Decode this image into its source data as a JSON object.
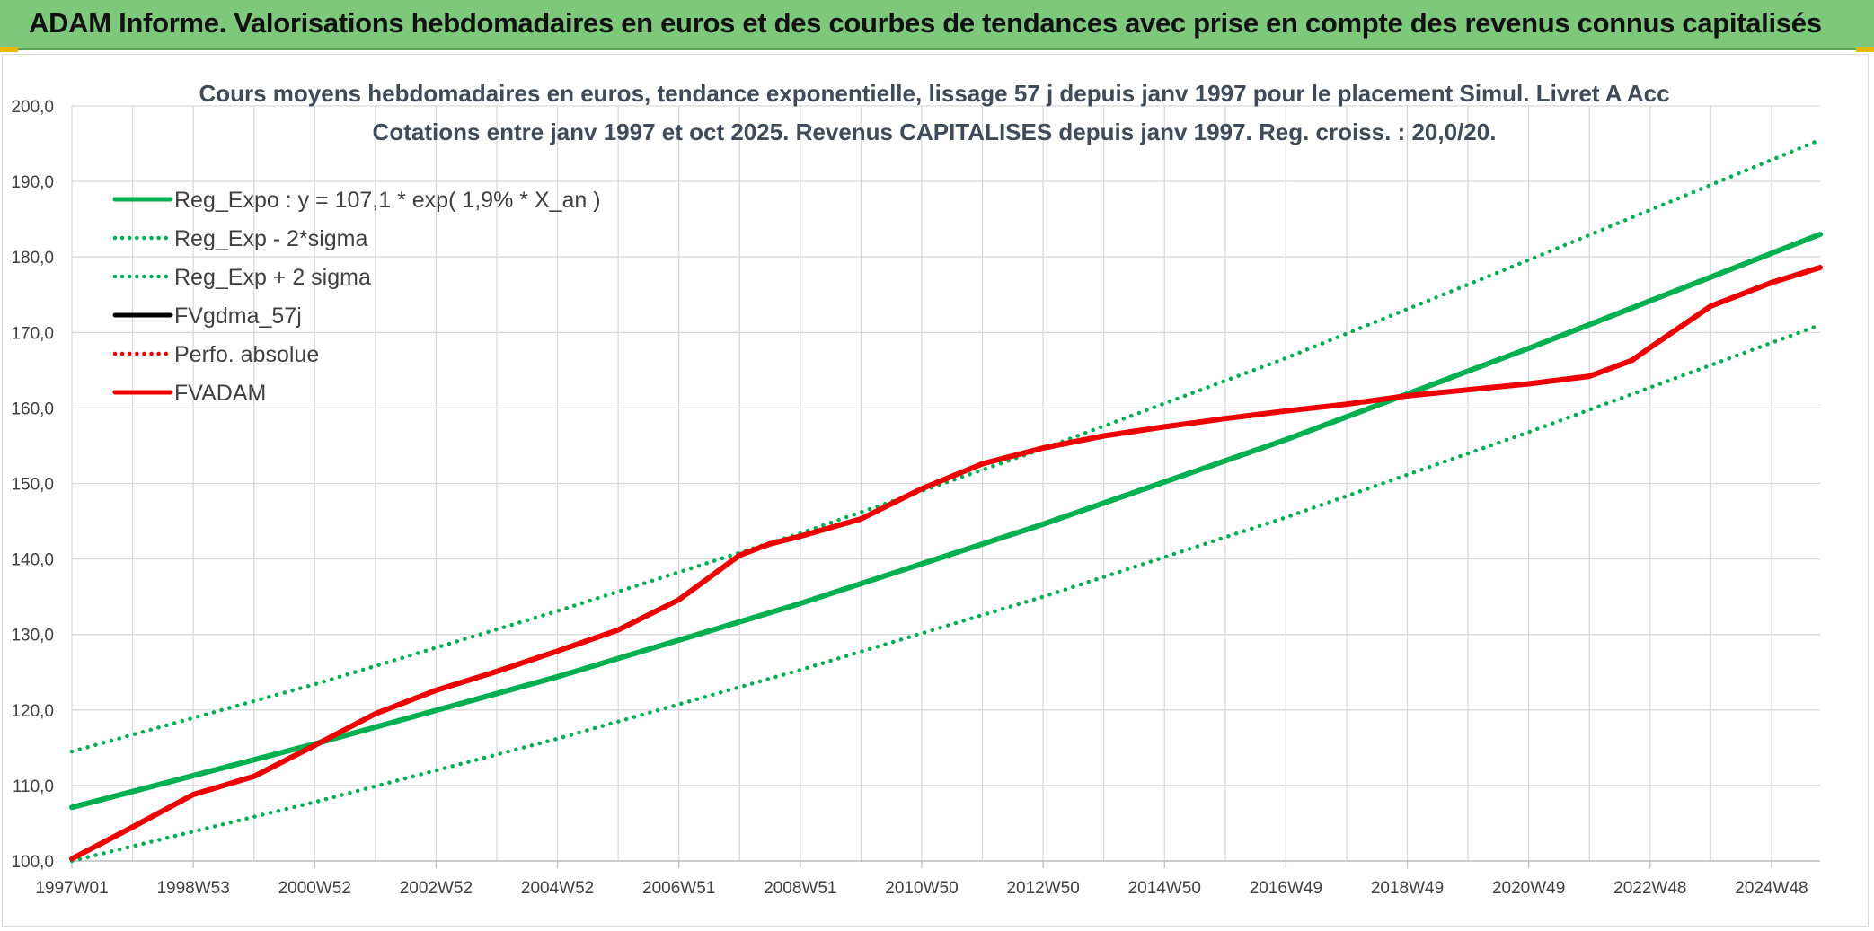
{
  "header": {
    "title": "ADAM Informe. Valorisations hebdomadaires en euros et des courbes de tendances avec prise en compte des revenus connus capitalisés"
  },
  "colors": {
    "banner": "#7dc87b",
    "trend_green": "#00b050",
    "series_red": "#ee0000",
    "series_black": "#000000"
  },
  "chart_data": {
    "type": "line",
    "title": "Cours moyens hebdomadaires en euros, tendance exponentielle, lissage 57 j depuis janv 1997 pour le placement Simul. Livret A Acc",
    "subtitle": "Cotations entre janv 1997 et oct 2025. Revenus CAPITALISES depuis janv 1997. Reg. croiss. : 20,0/20.",
    "xlabel": "",
    "ylabel": "",
    "xlim": [
      1997.0,
      2025.8
    ],
    "ylim": [
      100,
      200
    ],
    "y_ticks": [
      100,
      110,
      120,
      130,
      140,
      150,
      160,
      170,
      180,
      190,
      200
    ],
    "y_tick_labels": [
      "100,0",
      "110,0",
      "120,0",
      "130,0",
      "140,0",
      "150,0",
      "160,0",
      "170,0",
      "180,0",
      "190,0",
      "200,0"
    ],
    "x_tick_positions": [
      1997.0,
      1999.0,
      2001.0,
      2003.0,
      2005.0,
      2007.0,
      2009.0,
      2011.0,
      2013.0,
      2015.0,
      2017.0,
      2019.0,
      2021.0,
      2023.0,
      2025.0
    ],
    "x_tick_labels": [
      "1997W01",
      "1998W53",
      "2000W52",
      "2002W52",
      "2004W52",
      "2006W51",
      "2008W51",
      "2010W50",
      "2012W50",
      "2014W50",
      "2016W49",
      "2018W49",
      "2020W49",
      "2022W48",
      "2024W48"
    ],
    "grid": true,
    "legend_position": "top-left",
    "series": [
      {
        "name": "Reg_Expo : y = 107,1 * exp( 1,9% *  X_an )",
        "style": "solid",
        "color": "#00b050",
        "x": [
          1997.0,
          2001.0,
          2005.0,
          2009.0,
          2013.0,
          2017.0,
          2021.0,
          2025.8
        ],
        "values": [
          107.1,
          115.5,
          124.4,
          134.1,
          144.6,
          155.8,
          167.9,
          183.0
        ]
      },
      {
        "name": "Reg_Exp - 2*sigma",
        "style": "dotted",
        "color": "#00b050",
        "x": [
          1997.0,
          2001.0,
          2005.0,
          2009.0,
          2013.0,
          2017.0,
          2021.0,
          2025.8
        ],
        "values": [
          100.0,
          107.8,
          116.2,
          125.3,
          135.0,
          145.5,
          156.8,
          171.0
        ]
      },
      {
        "name": "Reg_Exp + 2 sigma",
        "style": "dotted",
        "color": "#00b050",
        "x": [
          1997.0,
          2001.0,
          2005.0,
          2009.0,
          2013.0,
          2017.0,
          2021.0,
          2025.8
        ],
        "values": [
          114.5,
          123.4,
          133.1,
          143.4,
          154.6,
          166.6,
          179.6,
          195.5
        ]
      },
      {
        "name": "FVgdma_57j",
        "style": "solid",
        "color": "#000000",
        "x": [],
        "values": []
      },
      {
        "name": "Perfo. absolue",
        "style": "dotted",
        "color": "#ee0000",
        "x": [],
        "values": []
      },
      {
        "name": "FVADAM",
        "style": "solid",
        "color": "#ee0000",
        "x": [
          1997.0,
          1998.0,
          1999.0,
          2000.0,
          2001.0,
          2002.0,
          2003.0,
          2004.0,
          2005.0,
          2006.0,
          2007.0,
          2008.0,
          2008.5,
          2009.0,
          2010.0,
          2011.0,
          2012.0,
          2013.0,
          2014.0,
          2015.0,
          2016.0,
          2017.0,
          2018.0,
          2019.0,
          2020.0,
          2021.0,
          2022.0,
          2022.7,
          2023.0,
          2024.0,
          2025.0,
          2025.8
        ],
        "values": [
          100.3,
          104.5,
          108.8,
          111.2,
          115.3,
          119.5,
          122.6,
          125.1,
          127.8,
          130.6,
          134.6,
          140.5,
          142.0,
          143.0,
          145.3,
          149.3,
          152.6,
          154.7,
          156.3,
          157.5,
          158.6,
          159.6,
          160.5,
          161.6,
          162.4,
          163.2,
          164.2,
          166.3,
          168.0,
          173.5,
          176.6,
          178.6
        ]
      }
    ]
  }
}
